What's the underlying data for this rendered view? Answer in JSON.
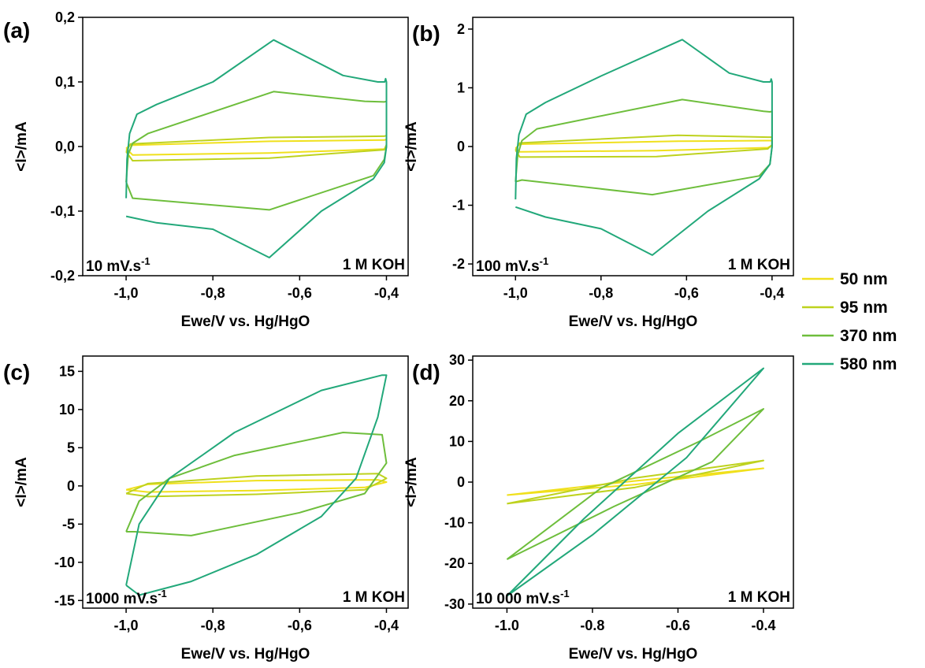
{
  "legend": {
    "items": [
      {
        "label": "50 nm",
        "color": "#F0E01C"
      },
      {
        "label": "95 nm",
        "color": "#BED21E"
      },
      {
        "label": "370 nm",
        "color": "#6EBE3C"
      },
      {
        "label": "580 nm",
        "color": "#22A87A"
      }
    ]
  },
  "chart_data": [
    {
      "type": "line",
      "panel_label": "(a)",
      "scan_rate_label": "10 mV.s",
      "scan_rate_exponent": "-1",
      "electrolyte_label": "1 M KOH",
      "xlabel": "Ewe/V vs. Hg/HgO",
      "ylabel": "<I>/mA",
      "xlim": [
        -1.1,
        -0.35
      ],
      "ylim": [
        -0.2,
        0.2
      ],
      "xticks": [
        -1.0,
        -0.8,
        -0.6,
        -0.4
      ],
      "xtick_labels": [
        "-1,0",
        "-0,8",
        "-0,6",
        "-0,4"
      ],
      "yticks": [
        -0.2,
        -0.1,
        0.0,
        0.1,
        0.2
      ],
      "ytick_labels": [
        "-0,2",
        "-0,1",
        "0,0",
        "0,1",
        "0,2"
      ],
      "series": [
        {
          "name": "50 nm",
          "x": [
            -1.0,
            -0.995,
            -0.99,
            -0.67,
            -0.405,
            -0.4,
            -0.4,
            -0.405,
            -0.67,
            -0.985,
            -1.0
          ],
          "y": [
            -0.003,
            0.0,
            0.002,
            0.008,
            0.01,
            0.011,
            0.001,
            -0.004,
            -0.01,
            -0.013,
            -0.003
          ]
        },
        {
          "name": "95 nm",
          "x": [
            -1.0,
            -0.995,
            -0.99,
            -0.67,
            -0.405,
            -0.4,
            -0.4,
            -0.405,
            -0.67,
            -0.985,
            -1.0
          ],
          "y": [
            -0.008,
            -0.002,
            0.004,
            0.014,
            0.016,
            0.017,
            0.003,
            -0.005,
            -0.018,
            -0.022,
            -0.008
          ]
        },
        {
          "name": "370 nm",
          "x": [
            -1.0,
            -0.995,
            -0.985,
            -0.95,
            -0.66,
            -0.45,
            -0.405,
            -0.4,
            -0.4,
            -0.405,
            -0.43,
            -0.67,
            -0.985,
            -1.0
          ],
          "y": [
            -0.055,
            -0.012,
            0.005,
            0.02,
            0.085,
            0.07,
            0.069,
            0.07,
            0.0,
            -0.02,
            -0.045,
            -0.098,
            -0.08,
            -0.055
          ]
        },
        {
          "name": "580 nm",
          "x": [
            -1.0,
            -0.998,
            -0.992,
            -0.975,
            -0.93,
            -0.8,
            -0.66,
            -0.5,
            -0.42,
            -0.404,
            -0.402,
            -0.4,
            -0.4,
            -0.405,
            -0.43,
            -0.55,
            -0.67,
            -0.8,
            -0.93,
            -1.0
          ],
          "y": [
            -0.08,
            -0.02,
            0.02,
            0.05,
            0.065,
            0.1,
            0.165,
            0.11,
            0.1,
            0.1,
            0.105,
            0.1,
            0.0,
            -0.025,
            -0.05,
            -0.1,
            -0.172,
            -0.128,
            -0.118,
            -0.108
          ]
        }
      ]
    },
    {
      "type": "line",
      "panel_label": "(b)",
      "scan_rate_label": "100 mV.s",
      "scan_rate_exponent": "-1",
      "electrolyte_label": "1 M KOH",
      "xlabel": "Ewe/V vs. Hg/HgO",
      "ylabel": "<I>/mA",
      "xlim": [
        -1.1,
        -0.35
      ],
      "ylim": [
        -2.2,
        2.2
      ],
      "xticks": [
        -1.0,
        -0.8,
        -0.6,
        -0.4
      ],
      "xtick_labels": [
        "-1,0",
        "-0,8",
        "-0,6",
        "-0,4"
      ],
      "yticks": [
        -2,
        -1,
        0,
        1,
        2
      ],
      "ytick_labels": [
        "-2",
        "-1",
        "0",
        "1",
        "2"
      ],
      "series": [
        {
          "name": "50 nm",
          "x": [
            -1.0,
            -0.99,
            -0.62,
            -0.41,
            -0.4,
            -0.4,
            -0.41,
            -0.67,
            -0.99,
            -1.0
          ],
          "y": [
            -0.03,
            0.04,
            0.09,
            0.1,
            0.1,
            0.02,
            -0.02,
            -0.07,
            -0.09,
            -0.03
          ]
        },
        {
          "name": "95 nm",
          "x": [
            -1.0,
            -0.99,
            -0.62,
            -0.41,
            -0.4,
            -0.4,
            -0.41,
            -0.67,
            -0.99,
            -1.0
          ],
          "y": [
            -0.06,
            0.06,
            0.19,
            0.16,
            0.16,
            0.03,
            -0.04,
            -0.17,
            -0.18,
            -0.06
          ]
        },
        {
          "name": "370 nm",
          "x": [
            -1.0,
            -0.995,
            -0.985,
            -0.95,
            -0.61,
            -0.42,
            -0.405,
            -0.4,
            -0.4,
            -0.405,
            -0.43,
            -0.68,
            -0.985,
            -1.0
          ],
          "y": [
            -0.6,
            -0.15,
            0.1,
            0.3,
            0.8,
            0.6,
            0.59,
            0.6,
            0.0,
            -0.3,
            -0.5,
            -0.82,
            -0.57,
            -0.6
          ]
        },
        {
          "name": "580 nm",
          "x": [
            -1.0,
            -0.998,
            -0.992,
            -0.975,
            -0.93,
            -0.8,
            -0.61,
            -0.5,
            -0.42,
            -0.404,
            -0.402,
            -0.4,
            -0.4,
            -0.405,
            -0.43,
            -0.55,
            -0.68,
            -0.8,
            -0.93,
            -1.0
          ],
          "y": [
            -0.9,
            -0.2,
            0.2,
            0.55,
            0.75,
            1.2,
            1.82,
            1.25,
            1.1,
            1.1,
            1.15,
            1.1,
            0.0,
            -0.3,
            -0.55,
            -1.1,
            -1.85,
            -1.4,
            -1.2,
            -1.03
          ]
        }
      ]
    },
    {
      "type": "line",
      "panel_label": "(c)",
      "scan_rate_label": "1000 mV.s",
      "scan_rate_exponent": "-1",
      "electrolyte_label": "1 M KOH",
      "xlabel": "Ewe/V vs. Hg/HgO",
      "ylabel": "<I>/mA",
      "xlim": [
        -1.1,
        -0.35
      ],
      "ylim": [
        -16,
        17
      ],
      "xticks": [
        -1.0,
        -0.8,
        -0.6,
        -0.4
      ],
      "xtick_labels": [
        "-1,0",
        "-0,8",
        "-0,6",
        "-0,4"
      ],
      "yticks": [
        -15,
        -10,
        -5,
        0,
        5,
        10,
        15
      ],
      "ytick_labels": [
        "-15",
        "-10",
        "-5",
        "0",
        "5",
        "10",
        "15"
      ],
      "series": [
        {
          "name": "50 nm",
          "x": [
            -1.0,
            -0.95,
            -0.7,
            -0.42,
            -0.4,
            -0.45,
            -0.7,
            -0.95,
            -1.0
          ],
          "y": [
            -0.5,
            0.2,
            0.7,
            0.8,
            0.5,
            -0.2,
            -0.6,
            -0.8,
            -0.5
          ]
        },
        {
          "name": "95 nm",
          "x": [
            -1.0,
            -0.95,
            -0.7,
            -0.42,
            -0.4,
            -0.45,
            -0.7,
            -0.95,
            -1.0
          ],
          "y": [
            -1.0,
            0.3,
            1.3,
            1.6,
            1.0,
            -0.5,
            -1.1,
            -1.4,
            -1.0
          ]
        },
        {
          "name": "370 nm",
          "x": [
            -1.0,
            -0.97,
            -0.9,
            -0.75,
            -0.5,
            -0.41,
            -0.4,
            -0.45,
            -0.6,
            -0.85,
            -0.98,
            -1.0
          ],
          "y": [
            -6.0,
            -2.0,
            1.0,
            4.0,
            7.0,
            6.7,
            3.0,
            -1.0,
            -3.5,
            -6.5,
            -6.0,
            -6.0
          ]
        },
        {
          "name": "580 nm",
          "x": [
            -1.0,
            -0.97,
            -0.9,
            -0.75,
            -0.55,
            -0.41,
            -0.4,
            -0.42,
            -0.47,
            -0.55,
            -0.7,
            -0.85,
            -0.97,
            -1.0
          ],
          "y": [
            -13.0,
            -5.0,
            1.0,
            7.0,
            12.5,
            14.5,
            14.5,
            9.0,
            1.0,
            -4.0,
            -9.0,
            -12.5,
            -14.3,
            -13.0
          ]
        }
      ]
    },
    {
      "type": "line",
      "panel_label": "(d)",
      "scan_rate_label": "10 000 mV.s",
      "scan_rate_exponent": "-1",
      "electrolyte_label": "1 M KOH",
      "xlabel": "Ewe/V vs. Hg/HgO",
      "ylabel": "<I>/mA",
      "xlim": [
        -1.08,
        -0.33
      ],
      "ylim": [
        -31,
        31
      ],
      "xticks": [
        -1.0,
        -0.8,
        -0.6,
        -0.4
      ],
      "xtick_labels": [
        "-1.0",
        "-0.8",
        "-0.6",
        "-0.4"
      ],
      "yticks": [
        -30,
        -20,
        -10,
        0,
        10,
        20,
        30
      ],
      "ytick_labels": [
        "-30",
        "-20",
        "-10",
        "0",
        "10",
        "20",
        "30"
      ],
      "series": [
        {
          "name": "50 nm",
          "x": [
            -1.0,
            -0.7,
            -0.4,
            -0.7,
            -1.0
          ],
          "y": [
            -3.2,
            0.3,
            3.4,
            -0.6,
            -3.2
          ]
        },
        {
          "name": "95 nm",
          "x": [
            -1.0,
            -0.7,
            -0.4,
            -0.7,
            -1.0
          ],
          "y": [
            -5.3,
            1.0,
            5.3,
            -1.3,
            -5.3
          ]
        },
        {
          "name": "370 nm",
          "x": [
            -1.0,
            -0.78,
            -0.55,
            -0.4,
            -0.52,
            -0.75,
            -1.0
          ],
          "y": [
            -19.0,
            -1.5,
            10.0,
            18.0,
            5.0,
            -6.0,
            -19.0
          ]
        },
        {
          "name": "580 nm",
          "x": [
            -1.0,
            -0.82,
            -0.6,
            -0.4,
            -0.58,
            -0.8,
            -1.0
          ],
          "y": [
            -28.0,
            -9.0,
            12.0,
            28.0,
            6.0,
            -13.0,
            -28.0
          ]
        }
      ]
    }
  ]
}
